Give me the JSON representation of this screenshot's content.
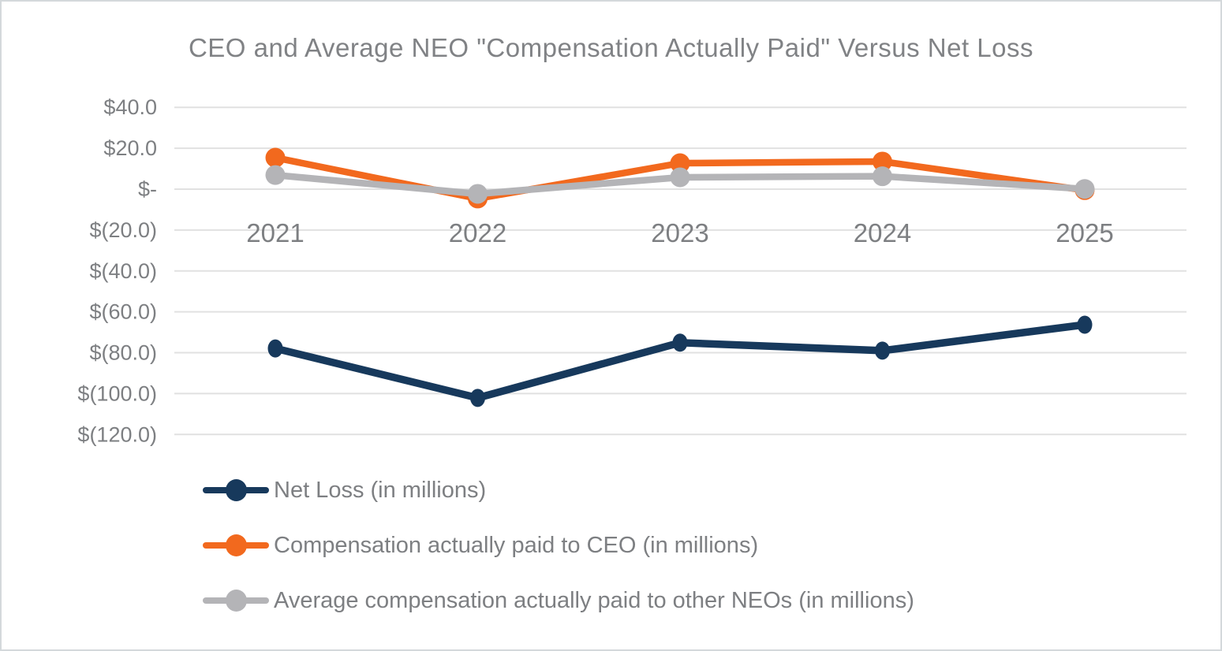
{
  "page": {
    "background": "#ffffff",
    "border_color": "#d4d8db"
  },
  "chart": {
    "title": "CEO and Average NEO \"Compensation Actually Paid\" Versus Net Loss",
    "title_color": "#808285",
    "axis_label_color": "#7d7f82",
    "gridline_color": "#e1e1e1"
  },
  "chart_data": {
    "type": "line",
    "title": "CEO and Average NEO \"Compensation Actually Paid\" Versus Net Loss",
    "categories": [
      "2021",
      "2022",
      "2023",
      "2024",
      "2025"
    ],
    "y_ticks": [
      "$40.0",
      "$20.0",
      "$-",
      "$(20.0)",
      "$(40.0)",
      "$(60.0)",
      "$(80.0)",
      "$(100.0)",
      "$(120.0)"
    ],
    "y_tick_values": [
      40,
      20,
      0,
      -20,
      -40,
      -60,
      -80,
      -100,
      -120
    ],
    "ylim": [
      -120,
      40
    ],
    "grid": true,
    "legend_position": "bottom-left",
    "xlabel": "",
    "ylabel": "",
    "series": [
      {
        "name": "Net Loss (in millions)",
        "color": "#17395c",
        "values": [
          -77.9,
          -102.1,
          -75.1,
          -79.0,
          -66.3
        ]
      },
      {
        "name": "Compensation actually paid to CEO (in millions)",
        "color": "#f2691e",
        "values": [
          15.4,
          -4.6,
          12.7,
          13.5,
          -0.5
        ]
      },
      {
        "name": "Average compensation actually paid to other NEOs (in millions)",
        "color": "#b4b4b7",
        "values": [
          6.9,
          -2.3,
          5.8,
          6.3,
          0.1
        ]
      }
    ]
  }
}
